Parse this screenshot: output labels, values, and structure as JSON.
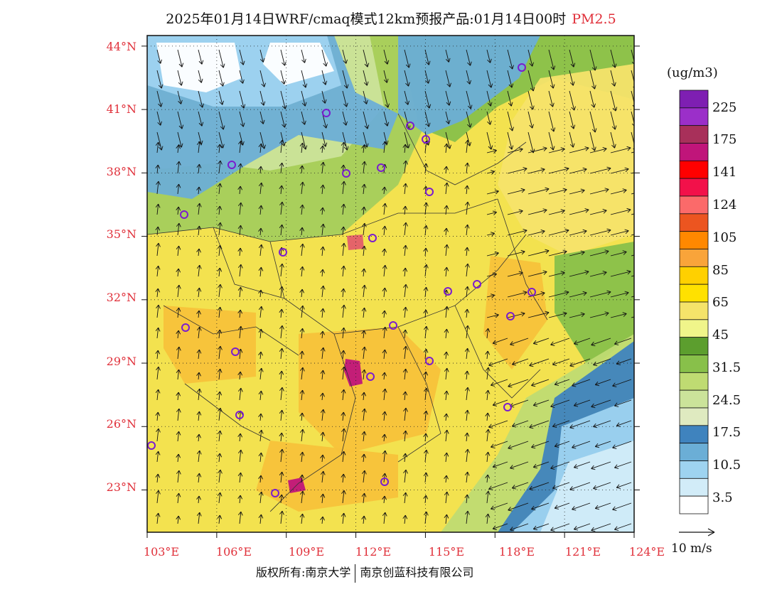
{
  "title": {
    "text": "2025年01月14日WRF/cmaq模式12km预报产品:01月14日00时",
    "variable": "PM2.5"
  },
  "map": {
    "lat_labels": [
      "44°N",
      "41°N",
      "38°N",
      "35°N",
      "32°N",
      "29°N",
      "26°N",
      "23°N"
    ],
    "lon_labels": [
      "103°E",
      "106°E",
      "109°E",
      "112°E",
      "115°E",
      "118°E",
      "121°E",
      "124°E"
    ],
    "lat_values": [
      44,
      41,
      38,
      35,
      32,
      29,
      26,
      23
    ],
    "lon_values": [
      103,
      106,
      109,
      112,
      115,
      118,
      121,
      124
    ],
    "lat_range": [
      21,
      44.5
    ],
    "lon_range": [
      103,
      124
    ],
    "graticule": "dotted",
    "content": [
      "PM2.5 concentration shading",
      "wind vectors",
      "province boundaries",
      "city markers"
    ]
  },
  "legend": {
    "unit": "(ug/m3)",
    "labels": [
      "225",
      "175",
      "141",
      "124",
      "105",
      "85",
      "65",
      "45",
      "31.5",
      "24.5",
      "17.5",
      "10.5",
      "3.5"
    ],
    "colors": [
      "#7e1fb2",
      "#9b2fc9",
      "#a8305a",
      "#c0157a",
      "#ff0000",
      "#f2114a",
      "#fb6a6a",
      "#ec5520",
      "#ff8800",
      "#f9a43a",
      "#ffd000",
      "#ffe100",
      "#f5e36a",
      "#f0f58a",
      "#5c9e2e",
      "#88c04a",
      "#bfdb72",
      "#cbe39a",
      "#dfeac0",
      "#3f83be",
      "#6baed6",
      "#9ed3f0",
      "#d2ecf8",
      "#ffffff"
    ]
  },
  "wind_reference": "10 m/s",
  "footer": {
    "left": "版权所有:南京大学",
    "right": "南京创蓝科技有限公司"
  }
}
